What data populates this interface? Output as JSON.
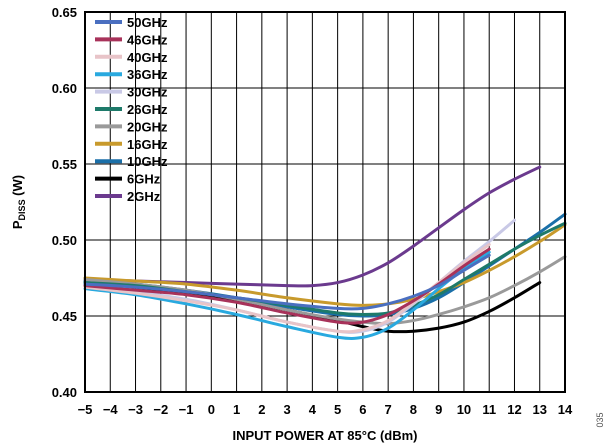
{
  "figure_id": "035",
  "chart_data": {
    "type": "line",
    "title": "",
    "xlabel": "INPUT POWER AT 85°C (dBm)",
    "ylabel_main": "P",
    "ylabel_sub": "DISS",
    "ylabel_unit": " (W)",
    "xlim": [
      -5,
      14
    ],
    "ylim": [
      0.4,
      0.65
    ],
    "xticks": [
      -5,
      -4,
      -3,
      -2,
      -1,
      0,
      1,
      2,
      3,
      4,
      5,
      6,
      7,
      8,
      9,
      10,
      11,
      12,
      13,
      14
    ],
    "xtick_labels": [
      "−5",
      "−4",
      "−3",
      "−2",
      "−1",
      "0",
      "1",
      "2",
      "3",
      "4",
      "5",
      "6",
      "7",
      "8",
      "9",
      "10",
      "11",
      "12",
      "13",
      "14"
    ],
    "yticks": [
      0.4,
      0.45,
      0.5,
      0.55,
      0.6,
      0.65
    ],
    "ytick_labels": [
      "0.40",
      "0.45",
      "0.50",
      "0.55",
      "0.60",
      "0.65"
    ],
    "grid": true,
    "legend_position": "top-left",
    "series": [
      {
        "name": "50GHz",
        "color": "#4a6fc0",
        "x": [
          -5,
          -3,
          -1,
          1,
          3,
          5,
          6,
          7,
          8,
          9,
          10,
          11
        ],
        "y": [
          0.471,
          0.469,
          0.466,
          0.462,
          0.458,
          0.455,
          0.455,
          0.458,
          0.463,
          0.47,
          0.48,
          0.49
        ]
      },
      {
        "name": "46GHz",
        "color": "#a8325a",
        "x": [
          -5,
          -3,
          -1,
          1,
          3,
          5,
          6,
          7,
          8,
          9,
          10,
          11
        ],
        "y": [
          0.47,
          0.467,
          0.464,
          0.459,
          0.452,
          0.446,
          0.446,
          0.451,
          0.46,
          0.471,
          0.483,
          0.494
        ]
      },
      {
        "name": "40GHz",
        "color": "#e8c4c8",
        "x": [
          -5,
          -3,
          -1,
          1,
          3,
          5,
          6,
          7,
          8,
          9,
          10,
          11
        ],
        "y": [
          0.469,
          0.465,
          0.46,
          0.454,
          0.446,
          0.44,
          0.441,
          0.447,
          0.459,
          0.472,
          0.485,
          0.497
        ]
      },
      {
        "name": "36GHz",
        "color": "#29a9df",
        "x": [
          -5,
          -3,
          -1,
          1,
          3,
          5,
          6,
          7,
          8,
          9,
          10,
          11
        ],
        "y": [
          0.468,
          0.464,
          0.458,
          0.451,
          0.443,
          0.436,
          0.436,
          0.442,
          0.454,
          0.468,
          0.481,
          0.492
        ]
      },
      {
        "name": "30GHz",
        "color": "#c9c9e6",
        "x": [
          -5,
          -3,
          -1,
          1,
          3,
          5,
          6,
          7,
          8,
          9,
          10,
          11,
          12
        ],
        "y": [
          0.47,
          0.466,
          0.461,
          0.454,
          0.446,
          0.44,
          0.44,
          0.446,
          0.458,
          0.472,
          0.486,
          0.499,
          0.513
        ]
      },
      {
        "name": "26GHz",
        "color": "#1e7a6a",
        "x": [
          -5,
          -3,
          -1,
          1,
          3,
          5,
          6,
          7,
          8,
          9,
          10,
          11,
          12,
          13,
          14
        ],
        "y": [
          0.472,
          0.47,
          0.466,
          0.462,
          0.457,
          0.452,
          0.451,
          0.452,
          0.457,
          0.464,
          0.474,
          0.484,
          0.494,
          0.503,
          0.511
        ]
      },
      {
        "name": "20GHz",
        "color": "#9a9a9a",
        "x": [
          -5,
          -3,
          -1,
          1,
          3,
          5,
          6,
          7,
          8,
          9,
          10,
          11,
          12,
          13,
          14
        ],
        "y": [
          0.474,
          0.471,
          0.467,
          0.461,
          0.454,
          0.448,
          0.446,
          0.445,
          0.447,
          0.451,
          0.456,
          0.462,
          0.47,
          0.479,
          0.489
        ]
      },
      {
        "name": "16GHz",
        "color": "#c89a2c",
        "x": [
          -5,
          -3,
          -1,
          1,
          3,
          5,
          6,
          7,
          8,
          9,
          10,
          11,
          12,
          13,
          14
        ],
        "y": [
          0.475,
          0.473,
          0.471,
          0.467,
          0.462,
          0.458,
          0.457,
          0.458,
          0.461,
          0.466,
          0.472,
          0.48,
          0.489,
          0.499,
          0.51
        ]
      },
      {
        "name": "10GHz",
        "color": "#1a6fa8",
        "x": [
          -5,
          -3,
          -1,
          1,
          3,
          5,
          6,
          7,
          8,
          9,
          10,
          11,
          12,
          13,
          14
        ],
        "y": [
          0.473,
          0.471,
          0.467,
          0.462,
          0.456,
          0.451,
          0.45,
          0.451,
          0.455,
          0.462,
          0.472,
          0.483,
          0.494,
          0.505,
          0.517
        ]
      },
      {
        "name": "6GHz",
        "color": "#000000",
        "x": [
          -5,
          -3,
          -1,
          1,
          3,
          5,
          6,
          7,
          8,
          9,
          10,
          11,
          12,
          13
        ],
        "y": [
          0.472,
          0.469,
          0.465,
          0.46,
          0.454,
          0.447,
          0.443,
          0.44,
          0.44,
          0.442,
          0.446,
          0.453,
          0.462,
          0.472
        ]
      },
      {
        "name": "2GHz",
        "color": "#6b3a8e",
        "x": [
          -5,
          -3,
          -1,
          1,
          3,
          4,
          5,
          6,
          7,
          8,
          9,
          10,
          11,
          12,
          13
        ],
        "y": [
          0.474,
          0.473,
          0.472,
          0.471,
          0.47,
          0.47,
          0.472,
          0.477,
          0.485,
          0.496,
          0.508,
          0.52,
          0.531,
          0.54,
          0.548
        ]
      }
    ]
  }
}
